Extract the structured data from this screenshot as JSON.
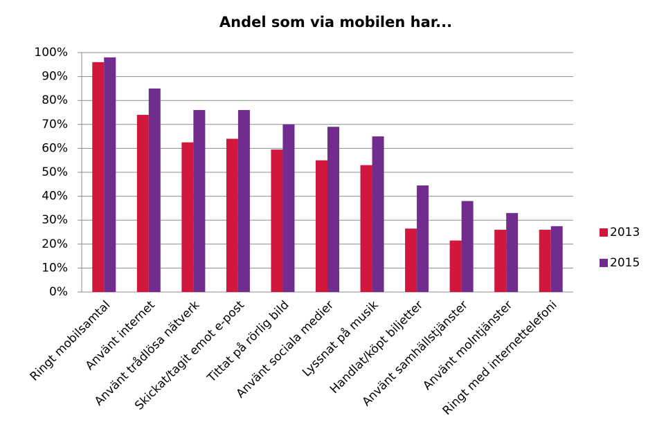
{
  "chart_data": {
    "type": "bar",
    "title": "Andel som via mobilen har...",
    "categories": [
      "Ringt mobilsamtal",
      "Använt internet",
      "Använt trådlösa nätverk",
      "Skickat/tagit emot e-post",
      "Tittat på rörlig bild",
      "Använt sociala medier",
      "Lyssnat på musik",
      "Handlat/köpt biljetter",
      "Använt samhällstjänster",
      "Använt molntjänster",
      "Ringt med internettelefoni"
    ],
    "series": [
      {
        "name": "2013",
        "color": "#d0183e",
        "values": [
          96,
          74,
          62.5,
          64,
          59.5,
          55,
          53,
          26.5,
          21.5,
          26,
          26
        ]
      },
      {
        "name": "2015",
        "color": "#702d8e",
        "values": [
          98,
          85,
          76,
          76,
          70,
          69,
          65,
          44.5,
          38,
          33,
          27.5
        ]
      }
    ],
    "ylim": [
      0,
      100
    ],
    "yticks": [
      {
        "value": 0,
        "label": "0%"
      },
      {
        "value": 10,
        "label": "10%"
      },
      {
        "value": 20,
        "label": "20%"
      },
      {
        "value": 30,
        "label": "30%"
      },
      {
        "value": 40,
        "label": "40%"
      },
      {
        "value": 50,
        "label": "50%"
      },
      {
        "value": 60,
        "label": "60%"
      },
      {
        "value": 70,
        "label": "70%"
      },
      {
        "value": 80,
        "label": "80%"
      },
      {
        "value": 90,
        "label": "90%"
      },
      {
        "value": 100,
        "label": "100%"
      }
    ],
    "grid": true,
    "legend": "right"
  }
}
